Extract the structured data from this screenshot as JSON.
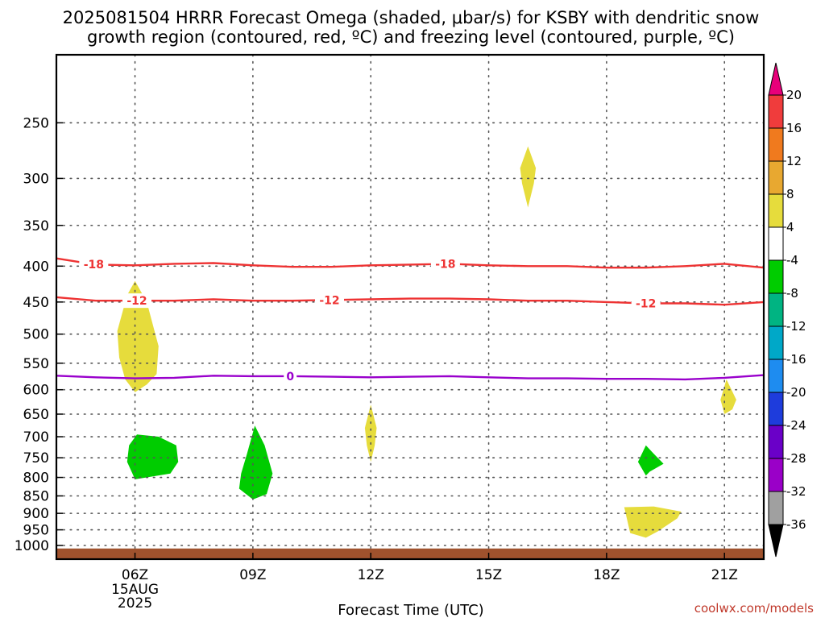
{
  "chart_data": {
    "type": "heatmap",
    "title_lines": [
      "2025081504 HRRR Forecast Omega (shaded, μbar/s) for KSBY with dendritic snow",
      "growth region (contoured, red, ºC) and freezing level (contoured, purple, ºC)"
    ],
    "xlabel": "Forecast Time (UTC)",
    "x_ticks": [
      "06Z",
      "09Z",
      "12Z",
      "15Z",
      "18Z",
      "21Z"
    ],
    "x_date_lines": [
      "15AUG",
      "2025"
    ],
    "xlim_hours": [
      4.0,
      22.0
    ],
    "y_ticks": [
      "250",
      "300",
      "350",
      "400",
      "450",
      "500",
      "550",
      "600",
      "650",
      "700",
      "750",
      "800",
      "850",
      "900",
      "950",
      "1000"
    ],
    "ylim_hpa": [
      200,
      1000
    ],
    "y_scale": "log-pressure (reversed)",
    "grid": true,
    "colorbar": {
      "labels": [
        "20",
        "16",
        "12",
        "8",
        "4",
        "-4",
        "-8",
        "-12",
        "-16",
        "-20",
        "-24",
        "-28",
        "-32",
        "-36"
      ],
      "colors": [
        "#e8007a",
        "#f03c3c",
        "#f07a1e",
        "#e8a830",
        "#e6dc3c",
        "#ffffff",
        "#00cc00",
        "#00b482",
        "#00a8c8",
        "#1e8cf0",
        "#1e3cdc",
        "#6a00c8",
        "#9a00c8",
        "#a0a0a0",
        "#000000"
      ]
    },
    "contours": [
      {
        "label": "-18",
        "color": "#ee3333",
        "value": -18,
        "x": [
          4.0,
          5.0,
          6.0,
          7.0,
          8.0,
          9.0,
          10.0,
          11.0,
          12.0,
          13.0,
          14.0,
          15.0,
          16.0,
          17.0,
          18.0,
          19.0,
          20.0,
          21.0,
          22.0
        ],
        "p": [
          390,
          398,
          399,
          397,
          396,
          399,
          401,
          401,
          399,
          398,
          397,
          399,
          400,
          400,
          402,
          402,
          400,
          397,
          402
        ],
        "label_x": [
          4.95,
          13.9
        ]
      },
      {
        "label": "-12",
        "color": "#ee3333",
        "value": -12,
        "x": [
          4.0,
          5.0,
          6.0,
          7.0,
          8.0,
          9.0,
          10.0,
          11.0,
          12.0,
          13.0,
          14.0,
          15.0,
          16.0,
          17.0,
          18.0,
          19.0,
          20.0,
          21.0,
          22.0
        ],
        "p": [
          443,
          448,
          448,
          448,
          446,
          448,
          448,
          447,
          446,
          445,
          445,
          446,
          448,
          448,
          450,
          452,
          452,
          454,
          450
        ],
        "label_x": [
          6.05,
          10.95,
          19.0
        ]
      },
      {
        "label": "0",
        "color": "#9900cc",
        "value": 0,
        "x": [
          4.0,
          5.0,
          6.0,
          7.0,
          8.0,
          9.0,
          10.0,
          11.0,
          12.0,
          13.0,
          14.0,
          15.0,
          16.0,
          17.0,
          18.0,
          19.0,
          20.0,
          21.0,
          22.0
        ],
        "p": [
          573,
          576,
          578,
          577,
          573,
          574,
          574,
          575,
          576,
          575,
          574,
          576,
          578,
          578,
          579,
          579,
          580,
          577,
          572
        ],
        "label_x": [
          9.95
        ]
      }
    ],
    "shaded_regions": [
      {
        "bin": "4 to 8",
        "color": "#e6dc3c",
        "x": [
          6.0,
          6.3,
          6.6,
          6.55,
          6.3,
          6.0,
          5.75,
          5.6,
          5.55,
          5.8
        ],
        "p": [
          420,
          450,
          520,
          570,
          590,
          605,
          580,
          540,
          495,
          440
        ]
      },
      {
        "bin": "4 to 8",
        "color": "#e6dc3c",
        "x": [
          16.0,
          16.2,
          16.15,
          16.0,
          15.85,
          15.8
        ],
        "p": [
          270,
          290,
          305,
          330,
          305,
          290
        ]
      },
      {
        "bin": "4 to 8",
        "color": "#e6dc3c",
        "x": [
          12.0,
          12.15,
          12.1,
          12.0,
          11.9,
          11.85
        ],
        "p": [
          630,
          680,
          720,
          760,
          720,
          680
        ]
      },
      {
        "bin": "4 to 8",
        "color": "#e6dc3c",
        "x": [
          21.05,
          21.3,
          21.2,
          21.0,
          20.9
        ],
        "p": [
          580,
          620,
          640,
          650,
          620
        ]
      },
      {
        "bin": "4 to 8",
        "color": "#e6dc3c",
        "x": [
          18.45,
          19.2,
          19.9,
          19.8,
          19.3,
          19.0,
          18.6
        ],
        "p": [
          882,
          880,
          895,
          915,
          955,
          975,
          960
        ]
      },
      {
        "bin": "-8 to -4",
        "color": "#00cc00",
        "x": [
          6.05,
          6.6,
          7.05,
          7.1,
          6.9,
          6.0,
          5.8,
          5.85
        ],
        "p": [
          695,
          700,
          720,
          760,
          790,
          805,
          760,
          720
        ]
      },
      {
        "bin": "-8 to -4",
        "color": "#00cc00",
        "x": [
          9.05,
          9.3,
          9.5,
          9.35,
          9.0,
          8.65,
          8.7,
          8.85
        ],
        "p": [
          675,
          720,
          790,
          845,
          860,
          830,
          790,
          740
        ]
      },
      {
        "bin": "-8 to -4",
        "color": "#00cc00",
        "x": [
          19.0,
          19.2,
          19.45,
          19.1,
          19.0,
          18.8
        ],
        "p": [
          720,
          740,
          765,
          785,
          795,
          760
        ]
      }
    ],
    "terrain_color": "#a0522d",
    "surface_p": 1010
  },
  "credit": "coolwx.com/models"
}
